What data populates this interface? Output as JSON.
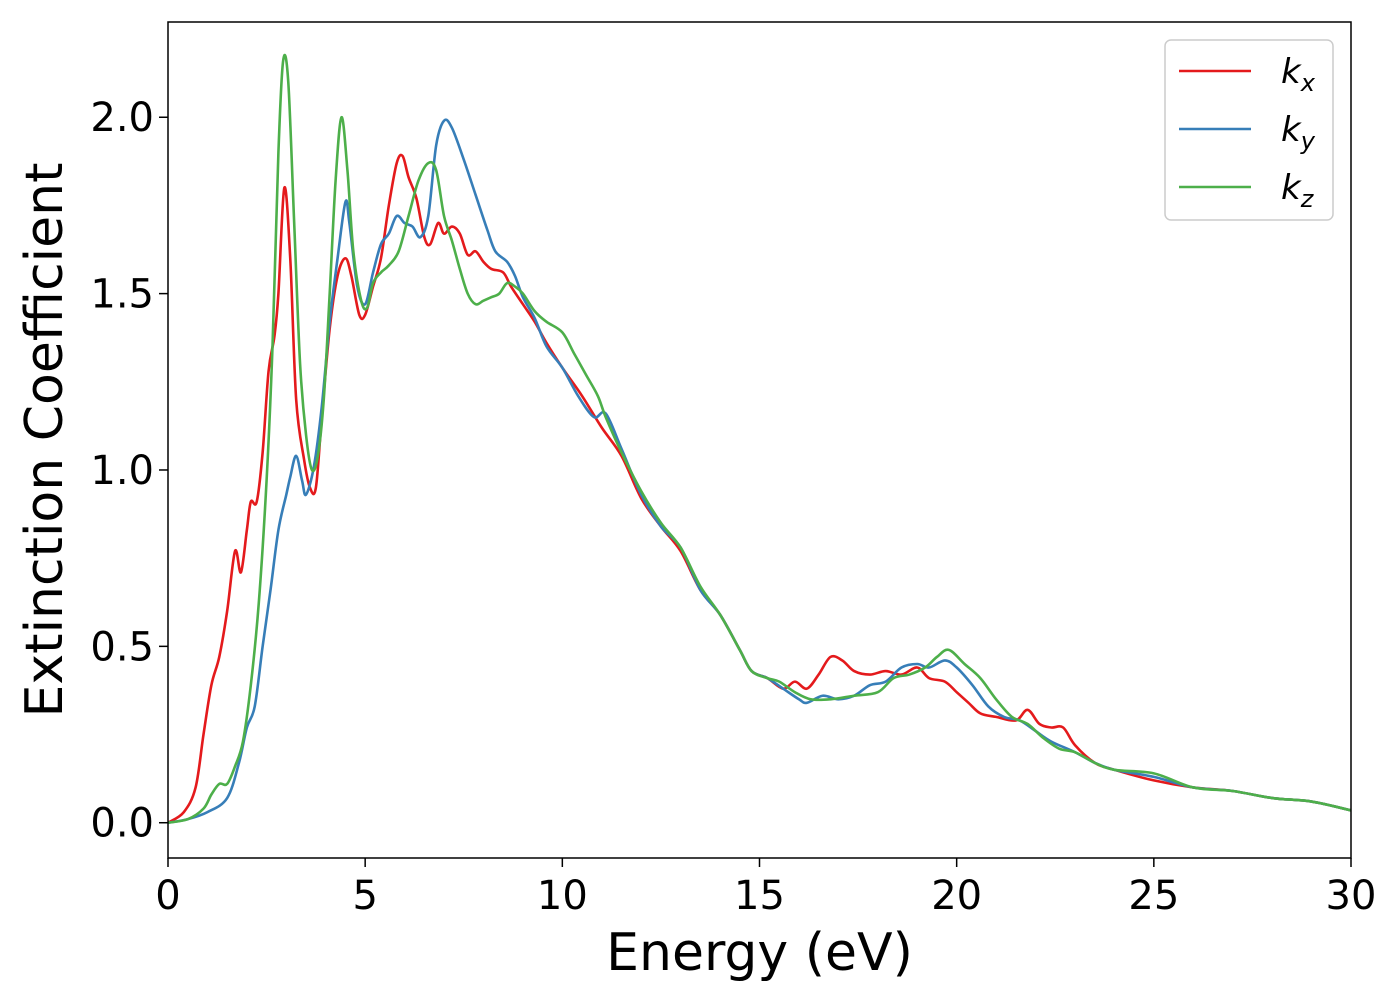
{
  "chart_data": {
    "type": "line",
    "title": "",
    "xlabel": "Energy (eV)",
    "ylabel": "Extinction Coefficient",
    "xlim": [
      0,
      30
    ],
    "ylim": [
      -0.1,
      2.27
    ],
    "xticks": [
      0,
      5,
      10,
      15,
      20,
      25,
      30
    ],
    "xtick_labels": [
      "0",
      "5",
      "10",
      "15",
      "20",
      "25",
      "30"
    ],
    "yticks": [
      0.0,
      0.5,
      1.0,
      1.5,
      2.0
    ],
    "ytick_labels": [
      "0.0",
      "0.5",
      "1.0",
      "1.5",
      "2.0"
    ],
    "grid": false,
    "legend": "top-right",
    "series": [
      {
        "name": "k",
        "sub": "x",
        "color": "#e41a1c",
        "points": [
          [
            0,
            0
          ],
          [
            0.4,
            0.03
          ],
          [
            0.7,
            0.1
          ],
          [
            0.9,
            0.25
          ],
          [
            1.1,
            0.39
          ],
          [
            1.3,
            0.47
          ],
          [
            1.5,
            0.6
          ],
          [
            1.7,
            0.77
          ],
          [
            1.85,
            0.71
          ],
          [
            2.0,
            0.83
          ],
          [
            2.1,
            0.91
          ],
          [
            2.25,
            0.91
          ],
          [
            2.4,
            1.05
          ],
          [
            2.55,
            1.28
          ],
          [
            2.7,
            1.38
          ],
          [
            2.8,
            1.5
          ],
          [
            2.95,
            1.8
          ],
          [
            3.1,
            1.6
          ],
          [
            3.25,
            1.2
          ],
          [
            3.45,
            1.03
          ],
          [
            3.6,
            0.95
          ],
          [
            3.75,
            0.95
          ],
          [
            3.9,
            1.15
          ],
          [
            4.1,
            1.4
          ],
          [
            4.3,
            1.55
          ],
          [
            4.5,
            1.6
          ],
          [
            4.65,
            1.55
          ],
          [
            4.85,
            1.44
          ],
          [
            5.0,
            1.44
          ],
          [
            5.2,
            1.52
          ],
          [
            5.4,
            1.6
          ],
          [
            5.6,
            1.75
          ],
          [
            5.8,
            1.87
          ],
          [
            5.95,
            1.89
          ],
          [
            6.1,
            1.83
          ],
          [
            6.3,
            1.77
          ],
          [
            6.5,
            1.66
          ],
          [
            6.65,
            1.64
          ],
          [
            6.85,
            1.7
          ],
          [
            7.0,
            1.67
          ],
          [
            7.2,
            1.69
          ],
          [
            7.4,
            1.67
          ],
          [
            7.6,
            1.61
          ],
          [
            7.8,
            1.62
          ],
          [
            8.0,
            1.59
          ],
          [
            8.2,
            1.57
          ],
          [
            8.5,
            1.56
          ],
          [
            8.7,
            1.52
          ],
          [
            9.0,
            1.47
          ],
          [
            9.3,
            1.42
          ],
          [
            9.6,
            1.36
          ],
          [
            10.0,
            1.29
          ],
          [
            10.5,
            1.21
          ],
          [
            11.0,
            1.12
          ],
          [
            11.5,
            1.04
          ],
          [
            12.0,
            0.92
          ],
          [
            12.5,
            0.84
          ],
          [
            13.0,
            0.77
          ],
          [
            13.5,
            0.66
          ],
          [
            14.0,
            0.59
          ],
          [
            14.5,
            0.49
          ],
          [
            14.8,
            0.43
          ],
          [
            15.2,
            0.41
          ],
          [
            15.6,
            0.38
          ],
          [
            15.9,
            0.4
          ],
          [
            16.2,
            0.38
          ],
          [
            16.5,
            0.42
          ],
          [
            16.8,
            0.47
          ],
          [
            17.1,
            0.46
          ],
          [
            17.4,
            0.43
          ],
          [
            17.8,
            0.42
          ],
          [
            18.2,
            0.43
          ],
          [
            18.6,
            0.42
          ],
          [
            19.0,
            0.44
          ],
          [
            19.3,
            0.41
          ],
          [
            19.7,
            0.4
          ],
          [
            20.0,
            0.37
          ],
          [
            20.3,
            0.34
          ],
          [
            20.6,
            0.31
          ],
          [
            21.0,
            0.3
          ],
          [
            21.5,
            0.29
          ],
          [
            21.8,
            0.32
          ],
          [
            22.1,
            0.28
          ],
          [
            22.4,
            0.27
          ],
          [
            22.7,
            0.27
          ],
          [
            23.0,
            0.22
          ],
          [
            23.5,
            0.17
          ],
          [
            24.0,
            0.15
          ],
          [
            25.0,
            0.12
          ],
          [
            26.0,
            0.1
          ],
          [
            27.0,
            0.09
          ],
          [
            28.0,
            0.07
          ],
          [
            29.0,
            0.06
          ],
          [
            30.0,
            0.035
          ]
        ]
      },
      {
        "name": "k",
        "sub": "y",
        "color": "#377eb8",
        "points": [
          [
            0,
            0
          ],
          [
            0.5,
            0.01
          ],
          [
            1.0,
            0.03
          ],
          [
            1.5,
            0.07
          ],
          [
            1.8,
            0.17
          ],
          [
            2.0,
            0.27
          ],
          [
            2.2,
            0.33
          ],
          [
            2.4,
            0.5
          ],
          [
            2.6,
            0.66
          ],
          [
            2.8,
            0.83
          ],
          [
            3.0,
            0.93
          ],
          [
            3.1,
            0.98
          ],
          [
            3.25,
            1.04
          ],
          [
            3.4,
            0.97
          ],
          [
            3.5,
            0.93
          ],
          [
            3.7,
            1.01
          ],
          [
            3.9,
            1.18
          ],
          [
            4.1,
            1.42
          ],
          [
            4.3,
            1.6
          ],
          [
            4.5,
            1.76
          ],
          [
            4.6,
            1.7
          ],
          [
            4.8,
            1.52
          ],
          [
            5.0,
            1.47
          ],
          [
            5.2,
            1.56
          ],
          [
            5.4,
            1.64
          ],
          [
            5.6,
            1.67
          ],
          [
            5.8,
            1.72
          ],
          [
            6.0,
            1.7
          ],
          [
            6.2,
            1.69
          ],
          [
            6.4,
            1.66
          ],
          [
            6.6,
            1.72
          ],
          [
            6.8,
            1.92
          ],
          [
            7.0,
            1.99
          ],
          [
            7.2,
            1.97
          ],
          [
            7.5,
            1.88
          ],
          [
            7.8,
            1.78
          ],
          [
            8.1,
            1.68
          ],
          [
            8.3,
            1.62
          ],
          [
            8.6,
            1.59
          ],
          [
            8.8,
            1.55
          ],
          [
            9.0,
            1.49
          ],
          [
            9.3,
            1.43
          ],
          [
            9.6,
            1.35
          ],
          [
            10.0,
            1.29
          ],
          [
            10.4,
            1.21
          ],
          [
            10.8,
            1.15
          ],
          [
            11.1,
            1.16
          ],
          [
            11.5,
            1.06
          ],
          [
            12.0,
            0.93
          ],
          [
            12.5,
            0.84
          ],
          [
            13.0,
            0.78
          ],
          [
            13.5,
            0.66
          ],
          [
            14.0,
            0.59
          ],
          [
            14.5,
            0.49
          ],
          [
            14.8,
            0.43
          ],
          [
            15.2,
            0.41
          ],
          [
            15.6,
            0.38
          ],
          [
            16.0,
            0.35
          ],
          [
            16.2,
            0.34
          ],
          [
            16.6,
            0.36
          ],
          [
            17.0,
            0.35
          ],
          [
            17.4,
            0.36
          ],
          [
            17.8,
            0.39
          ],
          [
            18.2,
            0.4
          ],
          [
            18.6,
            0.44
          ],
          [
            19.0,
            0.45
          ],
          [
            19.3,
            0.44
          ],
          [
            19.7,
            0.46
          ],
          [
            20.0,
            0.44
          ],
          [
            20.4,
            0.39
          ],
          [
            20.8,
            0.33
          ],
          [
            21.2,
            0.3
          ],
          [
            21.6,
            0.29
          ],
          [
            22.0,
            0.26
          ],
          [
            22.4,
            0.23
          ],
          [
            23.0,
            0.2
          ],
          [
            23.5,
            0.17
          ],
          [
            24.0,
            0.15
          ],
          [
            25.0,
            0.13
          ],
          [
            26.0,
            0.1
          ],
          [
            27.0,
            0.09
          ],
          [
            28.0,
            0.07
          ],
          [
            29.0,
            0.06
          ],
          [
            30.0,
            0.035
          ]
        ]
      },
      {
        "name": "k",
        "sub": "z",
        "color": "#4daf4a",
        "points": [
          [
            0,
            0
          ],
          [
            0.5,
            0.01
          ],
          [
            0.9,
            0.04
          ],
          [
            1.1,
            0.08
          ],
          [
            1.3,
            0.11
          ],
          [
            1.5,
            0.11
          ],
          [
            1.7,
            0.16
          ],
          [
            1.9,
            0.23
          ],
          [
            2.1,
            0.39
          ],
          [
            2.3,
            0.62
          ],
          [
            2.5,
            0.97
          ],
          [
            2.65,
            1.35
          ],
          [
            2.8,
            1.9
          ],
          [
            2.92,
            2.16
          ],
          [
            3.05,
            2.1
          ],
          [
            3.2,
            1.7
          ],
          [
            3.35,
            1.3
          ],
          [
            3.5,
            1.1
          ],
          [
            3.65,
            1.0
          ],
          [
            3.8,
            1.04
          ],
          [
            3.95,
            1.2
          ],
          [
            4.1,
            1.5
          ],
          [
            4.25,
            1.82
          ],
          [
            4.4,
            2.0
          ],
          [
            4.55,
            1.85
          ],
          [
            4.7,
            1.62
          ],
          [
            4.9,
            1.48
          ],
          [
            5.05,
            1.46
          ],
          [
            5.2,
            1.53
          ],
          [
            5.4,
            1.56
          ],
          [
            5.6,
            1.58
          ],
          [
            5.85,
            1.62
          ],
          [
            6.1,
            1.72
          ],
          [
            6.35,
            1.82
          ],
          [
            6.6,
            1.87
          ],
          [
            6.8,
            1.85
          ],
          [
            7.0,
            1.72
          ],
          [
            7.2,
            1.65
          ],
          [
            7.4,
            1.57
          ],
          [
            7.6,
            1.5
          ],
          [
            7.8,
            1.47
          ],
          [
            8.0,
            1.48
          ],
          [
            8.2,
            1.49
          ],
          [
            8.4,
            1.5
          ],
          [
            8.6,
            1.53
          ],
          [
            8.8,
            1.52
          ],
          [
            9.0,
            1.5
          ],
          [
            9.3,
            1.45
          ],
          [
            9.6,
            1.42
          ],
          [
            10.0,
            1.39
          ],
          [
            10.3,
            1.33
          ],
          [
            10.6,
            1.27
          ],
          [
            10.9,
            1.21
          ],
          [
            11.1,
            1.15
          ],
          [
            11.5,
            1.05
          ],
          [
            12.0,
            0.94
          ],
          [
            12.5,
            0.85
          ],
          [
            13.0,
            0.78
          ],
          [
            13.5,
            0.67
          ],
          [
            14.0,
            0.59
          ],
          [
            14.5,
            0.49
          ],
          [
            14.8,
            0.43
          ],
          [
            15.2,
            0.41
          ],
          [
            15.5,
            0.4
          ],
          [
            15.9,
            0.37
          ],
          [
            16.3,
            0.35
          ],
          [
            16.8,
            0.35
          ],
          [
            17.4,
            0.36
          ],
          [
            18.0,
            0.37
          ],
          [
            18.4,
            0.41
          ],
          [
            18.8,
            0.42
          ],
          [
            19.2,
            0.44
          ],
          [
            19.5,
            0.47
          ],
          [
            19.8,
            0.49
          ],
          [
            20.2,
            0.45
          ],
          [
            20.6,
            0.41
          ],
          [
            21.0,
            0.35
          ],
          [
            21.4,
            0.3
          ],
          [
            21.8,
            0.28
          ],
          [
            22.2,
            0.24
          ],
          [
            22.6,
            0.21
          ],
          [
            23.0,
            0.2
          ],
          [
            23.5,
            0.17
          ],
          [
            24.0,
            0.15
          ],
          [
            25.0,
            0.14
          ],
          [
            26.0,
            0.1
          ],
          [
            27.0,
            0.09
          ],
          [
            28.0,
            0.07
          ],
          [
            29.0,
            0.06
          ],
          [
            30.0,
            0.035
          ]
        ]
      }
    ]
  }
}
